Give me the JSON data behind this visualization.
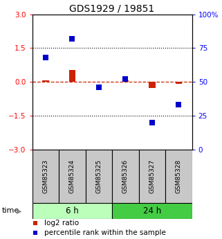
{
  "title": "GDS1929 / 19851",
  "samples": [
    "GSM85323",
    "GSM85324",
    "GSM85325",
    "GSM85326",
    "GSM85327",
    "GSM85328"
  ],
  "log2_ratio": [
    0.08,
    0.52,
    0.02,
    0.08,
    -0.28,
    -0.08
  ],
  "percentile_rank": [
    68,
    82,
    46,
    52,
    20,
    33
  ],
  "groups": [
    {
      "label": "6 h",
      "color_light": "#AAFFAA",
      "color_dark": "#44DD44",
      "indices": [
        0,
        1,
        2
      ]
    },
    {
      "label": "24 h",
      "color_light": "#44DD44",
      "color_dark": "#44DD44",
      "indices": [
        3,
        4,
        5
      ]
    }
  ],
  "group_colors": [
    "#BBFFBB",
    "#44CC44"
  ],
  "left_ylim": [
    -3,
    3
  ],
  "right_ylim": [
    0,
    100
  ],
  "left_yticks": [
    -3,
    -1.5,
    0,
    1.5,
    3
  ],
  "right_yticks": [
    0,
    25,
    50,
    75,
    100
  ],
  "hlines": [
    1.5,
    -1.5
  ],
  "bar_color": "#CC2200",
  "square_color": "#0000CC",
  "dashed_line_color": "#CC2200",
  "sample_box_color": "#C8C8C8",
  "title_fontsize": 10,
  "tick_fontsize": 7.5,
  "legend_fontsize": 7.5,
  "bar_width": 0.25,
  "square_size": 40
}
